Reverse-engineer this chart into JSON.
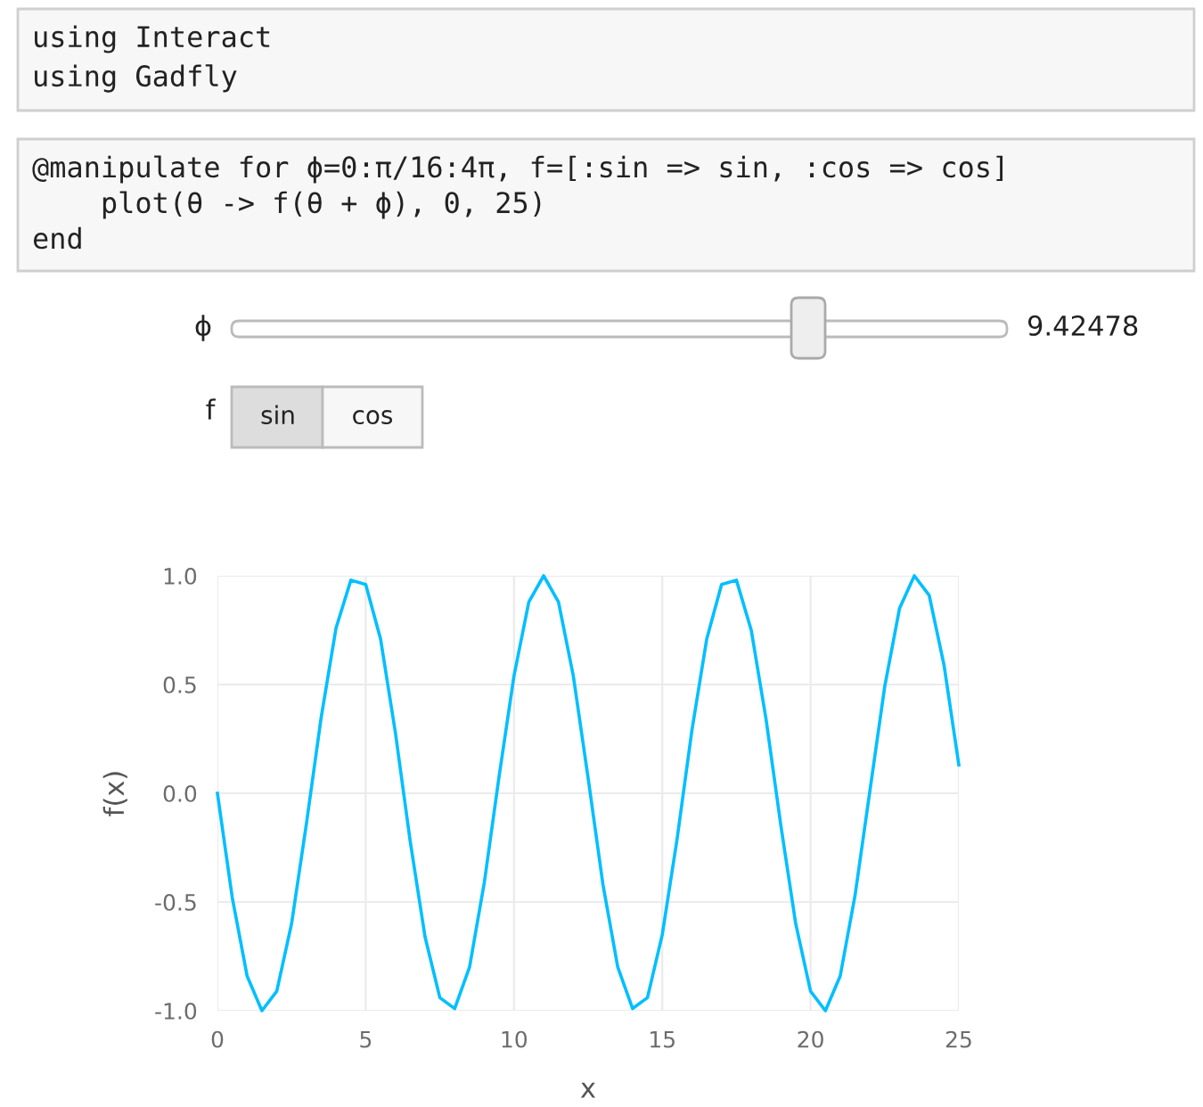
{
  "chart_data": {
    "type": "line",
    "xlabel": "x",
    "ylabel": "f(x)",
    "annotations": [
      "using Interact",
      "using Gadfly",
      "@manipulate for ϕ=0:π/16:4π, f=[:sin => sin, :cos => cos]",
      "    plot(θ -> f(θ + ϕ), 0, 25)",
      "end",
      "ϕ",
      "9.42478",
      "f",
      "sin",
      "cos"
    ],
    "x": [
      0,
      0.5,
      1,
      1.5,
      2,
      2.5,
      3,
      3.5,
      4,
      4.5,
      5,
      5.5,
      6,
      6.5,
      7,
      7.5,
      8,
      8.5,
      9,
      9.5,
      10,
      10.5,
      11,
      11.5,
      12,
      12.5,
      13,
      13.5,
      14,
      14.5,
      15,
      15.5,
      16,
      16.5,
      17,
      17.5,
      18,
      18.5,
      19,
      19.5,
      20,
      20.5,
      21,
      21.5,
      22,
      22.5,
      23,
      23.5,
      24,
      24.5,
      25
    ],
    "series": [
      {
        "color": "#00bfff",
        "values": [
          0,
          -0.48,
          -0.84,
          -1.0,
          -0.91,
          -0.6,
          -0.14,
          0.35,
          0.76,
          0.98,
          0.96,
          0.71,
          0.28,
          -0.22,
          -0.66,
          -0.94,
          -0.99,
          -0.8,
          -0.41,
          0.08,
          0.54,
          0.88,
          1.0,
          0.88,
          0.54,
          0.07,
          -0.42,
          -0.8,
          -0.99,
          -0.94,
          -0.65,
          -0.21,
          0.29,
          0.71,
          0.96,
          0.98,
          0.75,
          0.34,
          -0.15,
          -0.6,
          -0.91,
          -1.0,
          -0.84,
          -0.47,
          0.01,
          0.49,
          0.85,
          1.0,
          0.91,
          0.59,
          0.13
        ]
      }
    ],
    "xlim": [
      0,
      25
    ],
    "ylim": [
      -1,
      1
    ],
    "xticks": [
      0,
      5,
      10,
      15,
      20,
      25
    ],
    "yticks": [
      {
        "value": -1,
        "label": "-1.0"
      },
      {
        "value": -0.5,
        "label": "-0.5"
      },
      {
        "value": 0,
        "label": "0.0"
      },
      {
        "value": 0.5,
        "label": "0.5"
      },
      {
        "value": 1,
        "label": "1.0"
      }
    ],
    "grid": true,
    "marker": "none",
    "line_style": "solid"
  }
}
